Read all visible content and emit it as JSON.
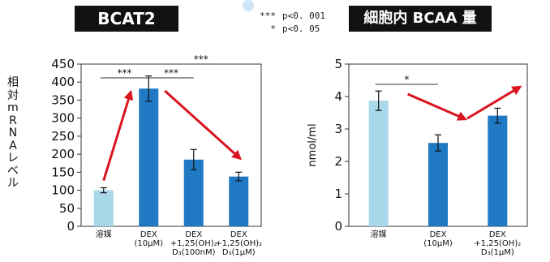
{
  "titles": {
    "left": "BCAT2",
    "right": "細胞内 BCAA 量"
  },
  "significance_legend": [
    {
      "stars": "***",
      "text": "p<0. 001"
    },
    {
      "stars": "*",
      "text": "p<0. 05"
    }
  ],
  "colors": {
    "vehicle_bar": "#a8d8ea",
    "treatment_bar": "#1f7ac3",
    "arrow": "#d9141f",
    "title_bg": "#111111"
  },
  "chart_data": [
    {
      "type": "bar",
      "title": "BCAT2",
      "ylabel": "相対mRNAレベル",
      "ylim": [
        0,
        450
      ],
      "yticks": [
        0,
        50,
        100,
        150,
        200,
        250,
        300,
        350,
        400,
        450
      ],
      "categories": [
        [
          "溶媒"
        ],
        [
          "DEX",
          "(10μM)"
        ],
        [
          "DEX",
          "+1,25(OH)₂",
          "D₃(100nM)"
        ],
        [
          "DEX",
          "+1,25(OH)₂",
          "D₃(1μM)"
        ]
      ],
      "values": [
        100,
        382,
        185,
        138
      ],
      "errors": [
        7,
        35,
        28,
        12
      ],
      "bar_colors": [
        "#a8d8ea",
        "#1f7ac3",
        "#1f7ac3",
        "#1f7ac3"
      ],
      "significance": [
        {
          "from": 0,
          "to": 1,
          "label": "***",
          "level": 0
        },
        {
          "from": 1,
          "to": 2,
          "label": "***",
          "level": 0
        },
        {
          "from": 1,
          "to": 3,
          "label": "***",
          "level": 1
        }
      ],
      "arrows": [
        {
          "from_bar": 0,
          "to_bar": 1
        },
        {
          "from_bar": 1,
          "to_bar": 3
        }
      ]
    },
    {
      "type": "bar",
      "title": "細胞内 BCAA 量",
      "ylabel": "nmol/ml",
      "ylim": [
        0,
        5
      ],
      "yticks": [
        0,
        1,
        2,
        3,
        4,
        5
      ],
      "categories": [
        [
          "溶媒"
        ],
        [
          "DEX",
          "(10μM)"
        ],
        [
          "DEX",
          "+1,25(OH)₂",
          "D₃(1μM)"
        ]
      ],
      "values": [
        3.87,
        2.57,
        3.41
      ],
      "errors": [
        0.3,
        0.25,
        0.23
      ],
      "bar_colors": [
        "#a8d8ea",
        "#1f7ac3",
        "#1f7ac3"
      ],
      "significance": [
        {
          "from": 0,
          "to": 1,
          "label": "*",
          "level": 0
        }
      ],
      "arrows": [
        {
          "from_bar": 0,
          "to_bar": 1
        },
        {
          "from_bar": 1,
          "to_bar": 2
        }
      ]
    }
  ]
}
